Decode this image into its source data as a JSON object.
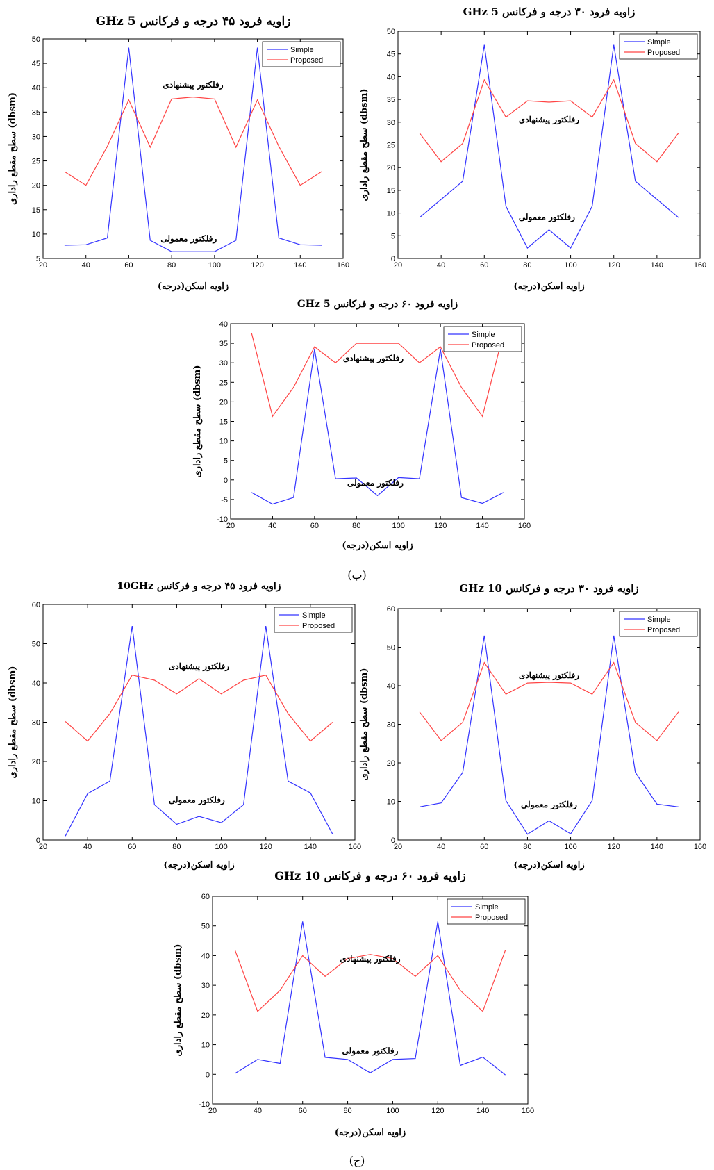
{
  "colors": {
    "simple": "#3333ff",
    "proposed": "#ff4444"
  },
  "captions": [
    "(ب)",
    "(ج)"
  ],
  "chart_data": [
    {
      "type": "line",
      "title": "زاویه فرود ۴۵ درجه و فرکانس 5 GHz",
      "xlabel": "زاویه اسکن(درجه)",
      "ylabel": "سطح مقطع راداری (dbsm)",
      "xlim": [
        20,
        160
      ],
      "ylim": [
        5,
        50
      ],
      "xticks": [
        20,
        40,
        60,
        80,
        100,
        120,
        140,
        160
      ],
      "yticks": [
        5,
        10,
        15,
        20,
        25,
        30,
        35,
        40,
        45,
        50
      ],
      "legend_position": "top-right",
      "x": [
        30,
        40,
        50,
        60,
        70,
        80,
        90,
        100,
        110,
        120,
        130,
        140,
        150
      ],
      "series": [
        {
          "name": "Simple",
          "values": [
            7.7,
            7.8,
            9.2,
            48.2,
            8.7,
            6.4,
            6.4,
            6.4,
            8.7,
            48.2,
            9.2,
            7.8,
            7.7
          ]
        },
        {
          "name": "Proposed",
          "values": [
            22.8,
            20.0,
            28.0,
            37.5,
            27.8,
            37.7,
            38.1,
            37.7,
            27.8,
            37.5,
            28.0,
            20.0,
            22.8
          ]
        }
      ],
      "annotations": [
        {
          "text": "رفلکتور پیشنهادی",
          "x": 90,
          "y": 40
        },
        {
          "text": "رفلکتور معمولی",
          "x": 88,
          "y": 8.5
        }
      ]
    },
    {
      "type": "line",
      "title": "زاویه فرود ۳۰ درجه و فرکانس 5 GHz",
      "xlabel": "زاویه اسکن(درجه)",
      "ylabel": "سطح مقطع راداری (dbsm)",
      "xlim": [
        20,
        160
      ],
      "ylim": [
        0,
        50
      ],
      "xticks": [
        20,
        40,
        60,
        80,
        100,
        120,
        140,
        160
      ],
      "yticks": [
        0,
        5,
        10,
        15,
        20,
        25,
        30,
        35,
        40,
        45,
        50
      ],
      "legend_position": "top-right",
      "x": [
        30,
        40,
        50,
        60,
        70,
        80,
        90,
        100,
        110,
        120,
        130,
        140,
        150
      ],
      "series": [
        {
          "name": "Simple",
          "values": [
            9.0,
            13.0,
            17.0,
            47.0,
            11.5,
            2.3,
            6.3,
            2.3,
            11.5,
            47.0,
            17.0,
            13.0,
            9.0
          ]
        },
        {
          "name": "Proposed",
          "values": [
            27.6,
            21.3,
            25.3,
            39.3,
            31.1,
            34.7,
            34.4,
            34.7,
            31.1,
            39.3,
            25.3,
            21.3,
            27.6
          ]
        }
      ],
      "annotations": [
        {
          "text": "رفلکتور پیشنهادی",
          "x": 90,
          "y": 30
        },
        {
          "text": "رفلکتور معمولی",
          "x": 89,
          "y": 8.5
        }
      ]
    },
    {
      "type": "line",
      "title": "زاویه فرود ۶۰ درجه و فرکانس 5 GHz",
      "xlabel": "زاویه اسکن(درجه)",
      "ylabel": "سطح مقطع راداری (dbsm)",
      "xlim": [
        20,
        160
      ],
      "ylim": [
        -10,
        40
      ],
      "xticks": [
        20,
        40,
        60,
        80,
        100,
        120,
        140,
        160
      ],
      "yticks": [
        -10,
        -5,
        0,
        5,
        10,
        15,
        20,
        25,
        30,
        35,
        40
      ],
      "legend_position": "top-right",
      "x": [
        30,
        40,
        50,
        60,
        70,
        80,
        90,
        100,
        110,
        120,
        130,
        140,
        150
      ],
      "series": [
        {
          "name": "Simple",
          "values": [
            -3.2,
            -6.2,
            -4.5,
            33.5,
            0.3,
            0.5,
            -4.0,
            0.6,
            0.3,
            33.5,
            -4.5,
            -6.0,
            -3.2
          ]
        },
        {
          "name": "Proposed",
          "values": [
            37.6,
            16.3,
            23.7,
            34.1,
            30.0,
            35.0,
            35.0,
            35.0,
            30.0,
            34.1,
            23.7,
            16.3,
            37.6
          ]
        }
      ],
      "annotations": [
        {
          "text": "رفلکتور پیشنهادی",
          "x": 88,
          "y": 30.5
        },
        {
          "text": "رفلکتور معمولی",
          "x": 89,
          "y": -1.5
        }
      ]
    },
    {
      "type": "line",
      "title": "زاویه فرود ۴۵ درجه و فرکانس 10GHz",
      "xlabel": "زاویه اسکن(درجه)",
      "ylabel": "سطح مقطع راداری (dbsm)",
      "xlim": [
        20,
        160
      ],
      "ylim": [
        0,
        60
      ],
      "xticks": [
        20,
        40,
        60,
        80,
        100,
        120,
        140,
        160
      ],
      "yticks": [
        0,
        10,
        20,
        30,
        40,
        50,
        60
      ],
      "legend_position": "top-right",
      "x": [
        30,
        40,
        50,
        60,
        70,
        80,
        90,
        100,
        110,
        120,
        130,
        140,
        150
      ],
      "series": [
        {
          "name": "Simple",
          "values": [
            1.0,
            11.8,
            15.0,
            54.5,
            9.0,
            4.0,
            6.0,
            4.4,
            9.0,
            54.5,
            15.0,
            12.0,
            1.5
          ]
        },
        {
          "name": "Proposed",
          "values": [
            30.2,
            25.2,
            32.2,
            42.0,
            40.7,
            37.2,
            41.1,
            37.2,
            40.7,
            42.0,
            32.2,
            25.2,
            30.0
          ]
        }
      ],
      "annotations": [
        {
          "text": "رفلکتور پیشنهادی",
          "x": 90,
          "y": 43.5
        },
        {
          "text": "رفلکتور معمولی",
          "x": 89,
          "y": 9.5
        }
      ]
    },
    {
      "type": "line",
      "title": "زاویه فرود ۳۰ درجه و فرکانس 10 GHz",
      "xlabel": "زاویه اسکن(درجه)",
      "ylabel": "سطح مقطع راداری (dbsm)",
      "xlim": [
        20,
        160
      ],
      "ylim": [
        0,
        60
      ],
      "xticks": [
        20,
        40,
        60,
        80,
        100,
        120,
        140,
        160
      ],
      "yticks": [
        0,
        10,
        20,
        30,
        40,
        50,
        60
      ],
      "legend_position": "top-right",
      "x": [
        30,
        40,
        50,
        60,
        70,
        80,
        90,
        100,
        110,
        120,
        130,
        140,
        150
      ],
      "series": [
        {
          "name": "Simple",
          "values": [
            8.6,
            9.6,
            17.5,
            53.0,
            10.2,
            1.5,
            5.0,
            1.6,
            10.2,
            53.0,
            17.5,
            9.3,
            8.6
          ]
        },
        {
          "name": "Proposed",
          "values": [
            33.2,
            25.8,
            30.5,
            46.0,
            37.8,
            40.7,
            40.9,
            40.7,
            37.8,
            46.0,
            30.5,
            25.8,
            33.2
          ]
        }
      ],
      "annotations": [
        {
          "text": "رفلکتور پیشنهادی",
          "x": 90,
          "y": 42
        },
        {
          "text": "رفلکتور معمولی",
          "x": 90,
          "y": 8.5
        }
      ]
    },
    {
      "type": "line",
      "title": "زاویه فرود ۶۰ درجه و فرکانس 10 GHz",
      "xlabel": "زاویه اسکن(درجه)",
      "ylabel": "سطح مقطع راداری (dbsm)",
      "xlim": [
        20,
        160
      ],
      "ylim": [
        -10,
        60
      ],
      "xticks": [
        20,
        40,
        60,
        80,
        100,
        120,
        140,
        160
      ],
      "yticks": [
        -10,
        0,
        10,
        20,
        30,
        40,
        50,
        60
      ],
      "legend_position": "top-right",
      "x": [
        30,
        40,
        50,
        60,
        70,
        80,
        90,
        100,
        110,
        120,
        130,
        140,
        150
      ],
      "series": [
        {
          "name": "Simple",
          "values": [
            0.3,
            5.0,
            3.7,
            51.5,
            5.7,
            5.0,
            0.5,
            5.0,
            5.3,
            51.5,
            3.0,
            5.8,
            -0.2
          ]
        },
        {
          "name": "Proposed",
          "values": [
            41.8,
            21.2,
            28.3,
            40.0,
            33.0,
            39.0,
            40.4,
            39.0,
            33.0,
            40.0,
            28.3,
            21.2,
            41.8
          ]
        }
      ],
      "annotations": [
        {
          "text": "رفلکتور پیشنهادی",
          "x": 90,
          "y": 38
        },
        {
          "text": "رفلکتور معمولی",
          "x": 90,
          "y": 7
        }
      ]
    }
  ]
}
